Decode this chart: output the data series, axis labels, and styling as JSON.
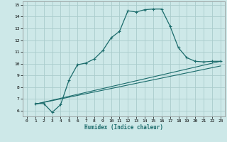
{
  "xlabel": "Humidex (Indice chaleur)",
  "bg_color": "#cde8e8",
  "grid_color": "#aacccc",
  "line_color": "#1a6b6b",
  "xlim": [
    -0.5,
    23.5
  ],
  "ylim": [
    5.5,
    15.3
  ],
  "xticks": [
    0,
    1,
    2,
    3,
    4,
    5,
    6,
    7,
    8,
    9,
    10,
    11,
    12,
    13,
    14,
    15,
    16,
    17,
    18,
    19,
    20,
    21,
    22,
    23
  ],
  "yticks": [
    6,
    7,
    8,
    9,
    10,
    11,
    12,
    13,
    14,
    15
  ],
  "line1_x": [
    1,
    2,
    3,
    4,
    5,
    6,
    7,
    8,
    9,
    10,
    11,
    12,
    13,
    14,
    15,
    16,
    17,
    18,
    19,
    20,
    21,
    22,
    23
  ],
  "line1_y": [
    6.6,
    6.6,
    5.85,
    6.5,
    8.6,
    9.9,
    10.05,
    10.4,
    11.1,
    12.2,
    12.75,
    14.5,
    14.4,
    14.6,
    14.65,
    14.65,
    13.2,
    11.35,
    10.5,
    10.2,
    10.15,
    10.2,
    10.2
  ],
  "line2_x": [
    1,
    23
  ],
  "line2_y": [
    6.55,
    10.2
  ],
  "line3_x": [
    1,
    23
  ],
  "line3_y": [
    6.55,
    9.8
  ]
}
